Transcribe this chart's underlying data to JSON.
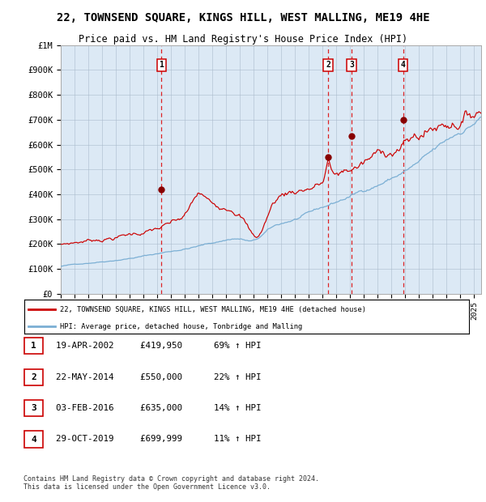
{
  "title": "22, TOWNSEND SQUARE, KINGS HILL, WEST MALLING, ME19 4HE",
  "subtitle": "Price paid vs. HM Land Registry's House Price Index (HPI)",
  "legend_line1": "22, TOWNSEND SQUARE, KINGS HILL, WEST MALLING, ME19 4HE (detached house)",
  "legend_line2": "HPI: Average price, detached house, Tonbridge and Malling",
  "footer": "Contains HM Land Registry data © Crown copyright and database right 2024.\nThis data is licensed under the Open Government Licence v3.0.",
  "sales": [
    {
      "num": 1,
      "date": "19-APR-2002",
      "price": 419950,
      "price_str": "£419,950",
      "pct": "69%",
      "dir": "↑"
    },
    {
      "num": 2,
      "date": "22-MAY-2014",
      "price": 550000,
      "price_str": "£550,000",
      "pct": "22%",
      "dir": "↑"
    },
    {
      "num": 3,
      "date": "03-FEB-2016",
      "price": 635000,
      "price_str": "£635,000",
      "pct": "14%",
      "dir": "↑"
    },
    {
      "num": 4,
      "date": "29-OCT-2019",
      "price": 699999,
      "price_str": "£699,999",
      "pct": "11%",
      "dir": "↑"
    }
  ],
  "sale_dates_decimal": [
    2002.3,
    2014.39,
    2016.09,
    2019.83
  ],
  "sale_prices": [
    419950,
    550000,
    635000,
    699999
  ],
  "vline_dates": [
    2002.3,
    2014.39,
    2016.09,
    2019.83
  ],
  "ylim": [
    0,
    1000000
  ],
  "xlim_start": 1995.0,
  "xlim_end": 2025.5,
  "background_color": "#dce9f5",
  "red_line_color": "#cc0000",
  "blue_line_color": "#7bafd4",
  "vline_color": "#dd0000",
  "marker_color": "#880000",
  "yticks": [
    0,
    100000,
    200000,
    300000,
    400000,
    500000,
    600000,
    700000,
    800000,
    900000,
    1000000
  ],
  "ylabels": [
    "£0",
    "£100K",
    "£200K",
    "£300K",
    "£400K",
    "£500K",
    "£600K",
    "£700K",
    "£800K",
    "£900K",
    "£1M"
  ]
}
